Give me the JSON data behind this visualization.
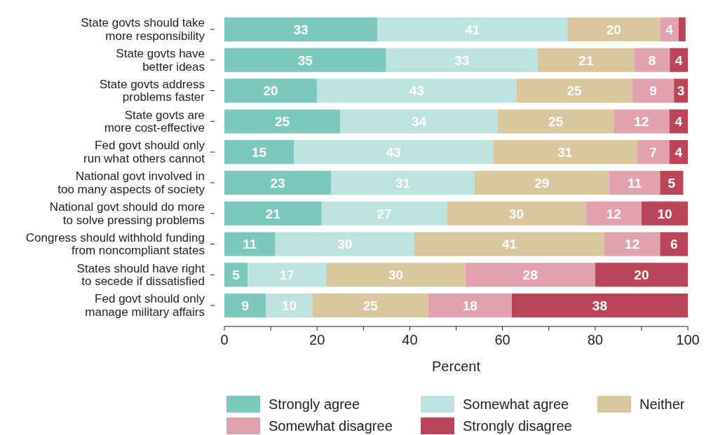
{
  "chart_data": {
    "type": "bar",
    "orientation": "horizontal",
    "stacked": true,
    "xlabel": "Percent",
    "categories": [
      "State govts should take more responsibility",
      "State govts have better ideas",
      "State govts address problems faster",
      "State govts are more cost-effective",
      "Fed govt should only run what others cannot",
      "National govt involved in too many aspects of society",
      "National govt should do more to solve pressing problems",
      "Congress should withhold funding from noncompliant states",
      "States should have right to secede if dissatisfied",
      "Fed govt should only manage military affairs"
    ],
    "series": [
      {
        "name": "Strongly agree",
        "color": "#7dc8bd",
        "values": [
          33,
          34.9,
          20,
          25,
          15,
          23,
          21,
          11,
          5,
          9
        ],
        "value_labels": [
          "33",
          "35",
          "20",
          "25",
          "15",
          "23",
          "21",
          "11",
          "5",
          "9"
        ]
      },
      {
        "name": "Somewhat agree",
        "color": "#bde3df",
        "values": [
          41,
          32.7,
          43,
          34,
          43,
          31,
          27,
          30,
          17,
          10
        ],
        "value_labels": [
          "41",
          "33",
          "43",
          "34",
          "43",
          "31",
          "27",
          "30",
          "17",
          "10"
        ]
      },
      {
        "name": "Neither",
        "color": "#d9c69d",
        "values": [
          20,
          20.9,
          25,
          25,
          31,
          29,
          30,
          41,
          30,
          25
        ],
        "value_labels": [
          "20",
          "21",
          "25",
          "25",
          "31",
          "29",
          "30",
          "41",
          "30",
          "25"
        ]
      },
      {
        "name": "Somewhat disagree",
        "color": "#e0a3ad",
        "values": [
          4,
          7.6,
          9,
          12,
          7,
          11,
          12,
          12,
          28,
          18
        ],
        "value_labels": [
          "4",
          "8",
          "9",
          "12",
          "7",
          "11",
          "12",
          "12",
          "28",
          "18"
        ]
      },
      {
        "name": "Strongly disagree",
        "color": "#bb4558",
        "values": [
          1.5,
          3.9,
          3,
          4,
          4,
          5,
          10,
          6,
          20,
          38
        ],
        "value_labels": [
          null,
          "4",
          "3",
          "4",
          "4",
          "5",
          "10",
          "6",
          "20",
          "38"
        ]
      }
    ],
    "xlim": [
      0,
      100
    ],
    "xticks": [
      0,
      {
        "value": 10,
        "label": null
      },
      20,
      {
        "value": 30,
        "label": null
      },
      40,
      {
        "value": 50,
        "label": null
      },
      60,
      {
        "value": 70,
        "label": null
      },
      80,
      {
        "value": 90,
        "label": null
      },
      100
    ],
    "grid": false,
    "legend": "bottom"
  }
}
